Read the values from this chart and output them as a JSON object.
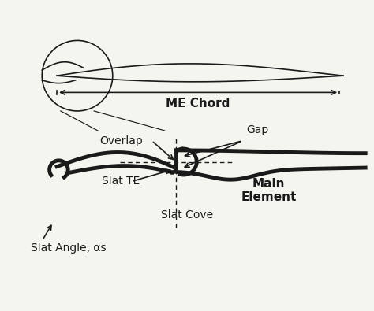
{
  "bg_color": "#f5f5f0",
  "line_color": "#1a1a1a",
  "thick_lw": 3.5,
  "thin_lw": 1.2,
  "dashed_lw": 1.0,
  "title": "",
  "labels": {
    "me_chord": "ME Chord",
    "gap": "Gap",
    "overlap": "Overlap",
    "slat_te": "Slat TE",
    "main_element": "Main\nElement",
    "slat_cove": "Slat Cove",
    "slat_angle": "Slat Angle, αs"
  },
  "font_size": 10,
  "bold_font_size": 11
}
